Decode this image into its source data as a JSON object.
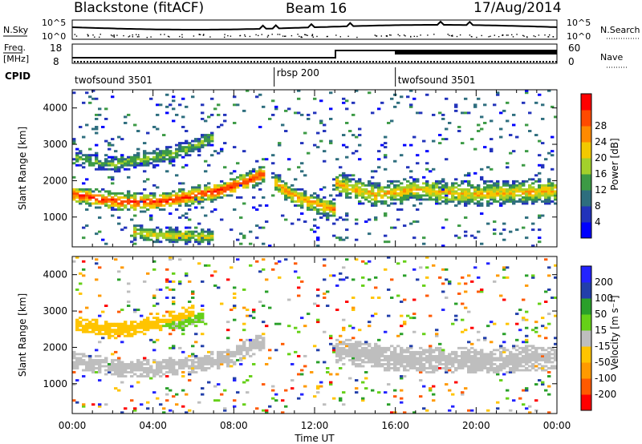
{
  "header": {
    "station": "Blackstone (fitACF)",
    "beam": "Beam 16",
    "date": "17/Aug/2014"
  },
  "noise_panel": {
    "left_label": "N.Sky",
    "right_label": "N.Search",
    "ticks": [
      "10^5",
      "10^0"
    ]
  },
  "freq_panel": {
    "left_label_top": "Freq.",
    "left_label_unit": "[MHz]",
    "left_ticks": [
      "18",
      "8"
    ],
    "right_label": "Nave",
    "right_ticks": [
      "60",
      "0"
    ]
  },
  "cpid_panel": {
    "label": "CPID",
    "segments": [
      {
        "name": "twofsound 3501",
        "start_h": 0,
        "end_h": 10
      },
      {
        "name": "rbsp 200",
        "start_h": 10,
        "end_h": 16
      },
      {
        "name": "twofsound 3501",
        "start_h": 16,
        "end_h": 24
      }
    ]
  },
  "colors": {
    "power_scale": [
      "#0000ff",
      "#2233bb",
      "#2e6e7e",
      "#3c9a45",
      "#a3d02b",
      "#f2c900",
      "#ff8a00",
      "#ff4a00",
      "#ff0000"
    ],
    "velocity_scale": [
      "#ff0000",
      "#ff5a00",
      "#ff9a00",
      "#ffc400",
      "#bebebe",
      "#66d018",
      "#2aa02a",
      "#223faa",
      "#2323ff"
    ]
  },
  "chart_data": [
    {
      "type": "heatmap",
      "panel": "power",
      "xlabel": "Time UT",
      "ylabel": "Slant Range [km]",
      "xlim": [
        0,
        24
      ],
      "ylim": [
        180,
        4500
      ],
      "x_ticks": [
        "00:00",
        "04:00",
        "08:00",
        "12:00",
        "16:00",
        "20:00",
        "00:00"
      ],
      "y_ticks": [
        "1000",
        "2000",
        "3000",
        "4000"
      ],
      "colorbar": {
        "label": "Power [dB]",
        "ticks": [
          "4",
          "8",
          "12",
          "16",
          "20",
          "24",
          "28"
        ],
        "range": [
          0,
          30
        ]
      },
      "bands": [
        {
          "t": [
            0,
            0.5,
            1.5,
            2.5,
            3.5,
            4.5,
            5.5,
            6.5,
            7.5,
            8.5,
            9.5
          ],
          "center_km": [
            1650,
            1580,
            1490,
            1420,
            1400,
            1440,
            1530,
            1630,
            1760,
            1950,
            2200
          ],
          "width_km": 520,
          "peak_db": 27
        },
        {
          "t": [
            10.0,
            10.5,
            11.0,
            11.5,
            12.0,
            12.5,
            13.0
          ],
          "center_km": [
            2000,
            1750,
            1580,
            1450,
            1380,
            1300,
            1200
          ],
          "width_km": 550,
          "peak_db": 22
        },
        {
          "t": [
            13.0,
            14.0,
            15.0,
            16.0,
            17.0,
            18.0,
            19.0,
            20.0,
            21.0,
            22.0,
            23.0,
            24.0
          ],
          "center_km": [
            1950,
            1750,
            1600,
            1680,
            1780,
            1700,
            1650,
            1620,
            1650,
            1680,
            1700,
            1720
          ],
          "width_km": 700,
          "peak_db": 20
        },
        {
          "t": [
            0.2,
            1.0,
            2.0,
            3.0,
            4.0,
            5.0,
            6.0,
            7.0
          ],
          "center_km": [
            2650,
            2500,
            2450,
            2550,
            2620,
            2750,
            2950,
            3200
          ],
          "width_km": 450,
          "peak_db": 14
        },
        {
          "t": [
            3.0,
            4.0,
            5.0,
            6.0,
            7.0
          ],
          "center_km": [
            600,
            520,
            500,
            480,
            450
          ],
          "width_km": 450,
          "peak_db": 18
        }
      ]
    },
    {
      "type": "heatmap",
      "panel": "velocity",
      "xlabel": "Time UT",
      "ylabel": "Slant Range [km]",
      "xlim": [
        0,
        24
      ],
      "ylim": [
        180,
        4500
      ],
      "x_ticks": [
        "00:00",
        "04:00",
        "08:00",
        "12:00",
        "16:00",
        "20:00",
        "00:00"
      ],
      "y_ticks": [
        "1000",
        "2000",
        "3000",
        "4000"
      ],
      "colorbar": {
        "label": "Velocity [m s⁻¹]",
        "ticks": [
          "200",
          "100",
          "50",
          "15",
          "-15",
          "-50",
          "-100",
          "-200"
        ],
        "range": [
          -250,
          250
        ]
      },
      "bands": [
        {
          "t": [
            0,
            2,
            4,
            6,
            8,
            9.5
          ],
          "center_km": [
            1650,
            1450,
            1400,
            1530,
            1760,
            2200
          ],
          "width_km": 500,
          "vel_ms": 0
        },
        {
          "t": [
            13,
            16,
            20,
            24
          ],
          "center_km": [
            1900,
            1680,
            1620,
            1720
          ],
          "width_km": 720,
          "vel_ms": 0
        },
        {
          "t": [
            0.2,
            2,
            4,
            6
          ],
          "center_km": [
            2650,
            2450,
            2620,
            2950
          ],
          "width_km": 450,
          "vel_ms": -60
        },
        {
          "t": [
            4.5,
            5.5,
            6.5
          ],
          "center_km": [
            2600,
            2700,
            2800
          ],
          "width_km": 350,
          "vel_ms": 40
        }
      ]
    }
  ]
}
